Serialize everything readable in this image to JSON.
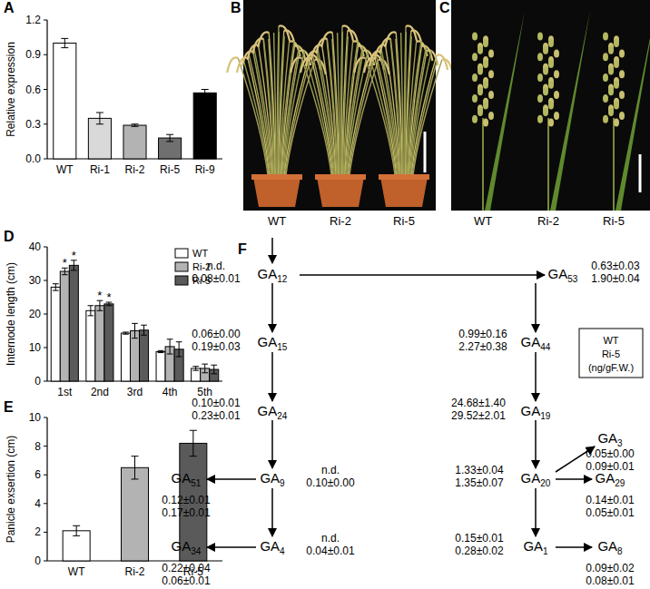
{
  "chart_data": [
    {
      "type": "bar",
      "title": "A",
      "y_label": "Relative expression",
      "categories": [
        "WT",
        "Ri-1",
        "Ri-2",
        "Ri-5",
        "Ri-9"
      ],
      "values": [
        1.0,
        0.35,
        0.29,
        0.18,
        0.57
      ],
      "errors": [
        0.04,
        0.05,
        0.01,
        0.03,
        0.03
      ],
      "colors": [
        "#ffffff",
        "#d9d9d9",
        "#b3b3b3",
        "#707070",
        "#000000"
      ],
      "ylim": [
        0,
        1.2
      ],
      "yticks": [
        {
          "value": 0,
          "label": "0.0"
        },
        {
          "value": 0.3,
          "label": "0.3"
        },
        {
          "value": 0.6,
          "label": "0.6"
        },
        {
          "value": 0.9,
          "label": "0.9"
        },
        {
          "value": 1.2,
          "label": "1.2"
        }
      ]
    },
    {
      "type": "bar",
      "title": "D",
      "y_label": "Internode length (cm)",
      "categories": [
        "1st",
        "2nd",
        "3rd",
        "4th",
        "5th"
      ],
      "series": [
        {
          "name": "WT",
          "color": "#ffffff",
          "values": [
            28,
            21,
            14.3,
            8.8,
            3.8
          ],
          "errors": [
            1,
            1.5,
            0.3,
            0.3,
            0.6
          ],
          "annotations": [
            null,
            null,
            null,
            null,
            null
          ]
        },
        {
          "name": "Ri-2",
          "color": "#b3b3b3",
          "values": [
            32.7,
            22.5,
            15,
            10.3,
            3.8
          ],
          "errors": [
            1,
            1.5,
            2.2,
            2.2,
            1.3
          ],
          "annotations": [
            "*",
            "*",
            null,
            null,
            null
          ]
        },
        {
          "name": "Ri-5",
          "color": "#5a5a5a",
          "values": [
            34.5,
            23,
            15.2,
            9.5,
            3.5
          ],
          "errors": [
            1.5,
            0.5,
            1.5,
            2.2,
            1.3
          ],
          "annotations": [
            "*",
            "*",
            null,
            null,
            null
          ]
        }
      ],
      "ylim": [
        0,
        40
      ],
      "yticks": [
        0,
        10,
        20,
        30,
        40
      ],
      "legend": "upper right"
    },
    {
      "type": "bar",
      "title": "E",
      "y_label": "Panicle exsertion (cm)",
      "categories": [
        "WT",
        "Ri-2",
        "Ri-5"
      ],
      "values": [
        2.1,
        6.5,
        8.2
      ],
      "errors": [
        0.35,
        0.8,
        0.9
      ],
      "colors": [
        "#ffffff",
        "#b3b3b3",
        "#5a5a5a"
      ],
      "ylim": [
        0,
        10
      ],
      "yticks": [
        0,
        2,
        4,
        6,
        8,
        10
      ]
    }
  ],
  "photos": [
    {
      "title": "B",
      "labels": [
        "WT",
        "Ri-2",
        "Ri-5"
      ]
    },
    {
      "title": "C",
      "labels": [
        "WT",
        "Ri-2",
        "Ri-5"
      ]
    }
  ],
  "diagram": {
    "title": "F",
    "nodes": [
      {
        "label": "GA12",
        "wt": "n.d.",
        "ri5": "0.08±0.01"
      },
      {
        "label": "GA53",
        "wt": "0.63±0.03",
        "ri5": "1.90±0.04"
      },
      {
        "label": "GA15",
        "wt": "0.06±0.00",
        "ri5": "0.19±0.03"
      },
      {
        "label": "GA44",
        "wt": "0.99±0.16",
        "ri5": "2.27±0.38"
      },
      {
        "label": "GA24",
        "wt": "0.10±0.01",
        "ri5": "0.23±0.01"
      },
      {
        "label": "GA19",
        "wt": "24.68±1.40",
        "ri5": "29.52±2.01"
      },
      {
        "label": "GA9",
        "wt": "n.d.",
        "ri5": "0.10±0.00"
      },
      {
        "label": "GA51",
        "wt": "0.12±0.01",
        "ri5": "0.17±0.01"
      },
      {
        "label": "GA20",
        "wt": "1.33±0.04",
        "ri5": "1.35±0.07"
      },
      {
        "label": "GA3",
        "wt": "0.05±0.00",
        "ri5": "0.09±0.01"
      },
      {
        "label": "GA29",
        "wt": "0.14±0.01",
        "ri5": "0.05±0.01"
      },
      {
        "label": "GA4",
        "wt": "n.d.",
        "ri5": "0.04±0.01"
      },
      {
        "label": "GA34",
        "wt": "0.22±0.04",
        "ri5": "0.06±0.01"
      },
      {
        "label": "GA1",
        "wt": "0.15±0.01",
        "ri5": "0.28±0.02"
      },
      {
        "label": "GA8",
        "wt": "0.09±0.02",
        "ri5": "0.08±0.01"
      }
    ],
    "legend_box": [
      "WT",
      "Ri-5",
      "(ng/gF.W.)"
    ]
  }
}
